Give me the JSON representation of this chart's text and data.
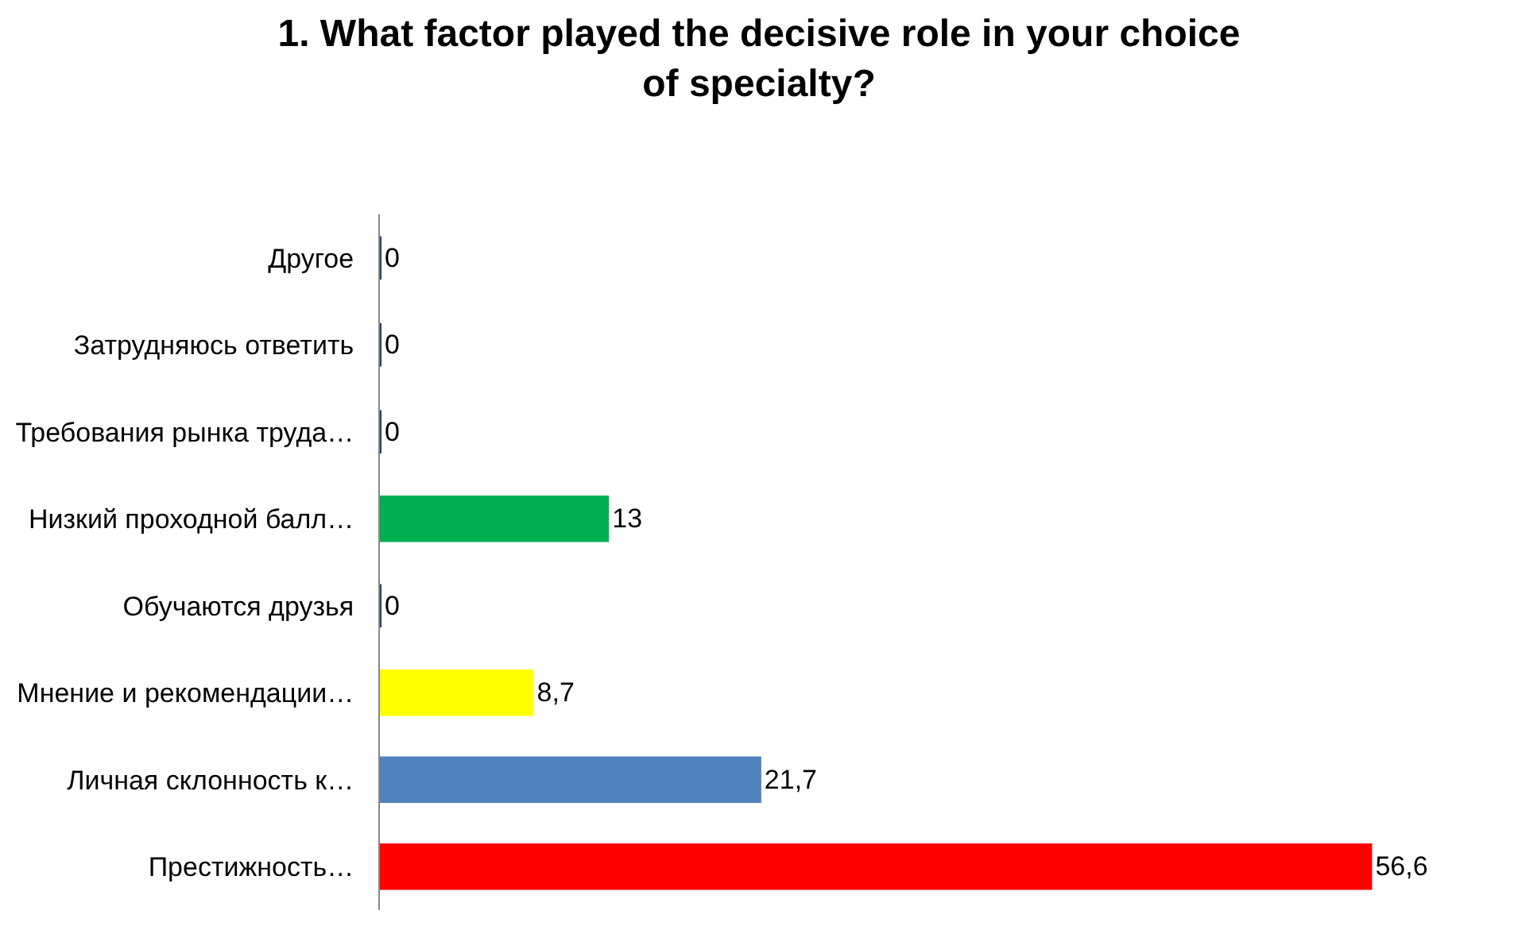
{
  "chart_data": {
    "type": "bar",
    "orientation": "horizontal",
    "title": "1. What factor played the decisive role in your choice of specialty?",
    "categories": [
      "Другое",
      "Затрудняюсь ответить",
      "Требования рынка труда…",
      "Низкий проходной балл…",
      "Обучаются друзья",
      "Мнение и рекомендации…",
      "Личная склонность к…",
      "Престижность…"
    ],
    "values": [
      0,
      0,
      0,
      13,
      0,
      8.7,
      21.7,
      56.6
    ],
    "colors": [
      "#1f3f73",
      "#1f3f73",
      "#1f3f73",
      "#00b050",
      "#1f3f73",
      "#ffff00",
      "#4f81bd",
      "#ff0000"
    ],
    "value_labels": [
      "0",
      "0",
      "0",
      "13",
      "0",
      "8,7",
      "21,7",
      "56,6"
    ],
    "legend": false
  }
}
